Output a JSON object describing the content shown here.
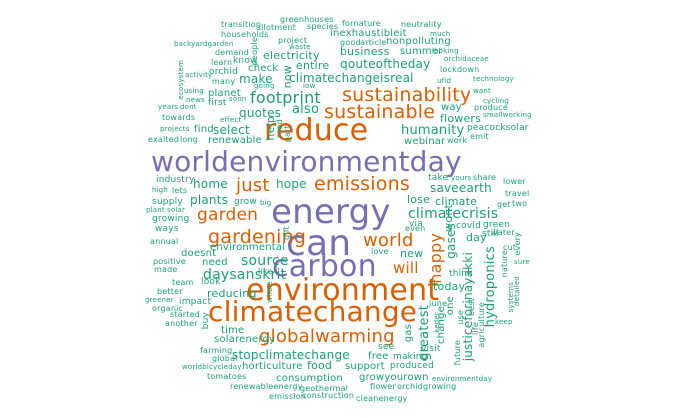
{
  "colors": {
    "purple": "#7570b3",
    "orange": "#d95f02",
    "green": "#1b9e77",
    "background": "#ffffff"
  },
  "words": {
    "worldenvironmentday": "worldenvironmentday",
    "energy": "energy",
    "environment": "environment",
    "climatechange": "climatechange",
    "reduce": "reduce",
    "can": "can",
    "carbon": "carbon",
    "sustainability": "sustainability",
    "sustainable": "sustainable",
    "emissions": "emissions",
    "gardening": "gardening",
    "globalwarming": "globalwarming",
    "world": "world",
    "garden": "garden",
    "just": "just",
    "will": "will",
    "happy": "happy",
    "climatecrisis": "climatecrisis",
    "footprint": "footprint",
    "hope": "hope",
    "source": "source",
    "daysanskrit": "daysanskrit",
    "stopclimatechange": "stopclimatechange",
    "greatest": "greatest",
    "justiceforinayakki": "justiceforinayakki",
    "hydroponics": "hydroponics",
    "humanity": "humanity",
    "saveearth": "saveearth",
    "climatechangeisreal": "climatechangeisreal",
    "qouteoftheday": "qouteoftheday",
    "business": "business",
    "inexhaustibleit": "inexhaustibleit",
    "electricity": "electricity",
    "entire": "entire",
    "planet": "planet",
    "also": "also",
    "make": "make",
    "quotes": "quotes",
    "select": "select",
    "home": "home",
    "plants": "plants",
    "reducing": "reducing",
    "solarenergy": "solarenergy",
    "horticulture": "horticulture",
    "consumption": "consumption",
    "growyourown": "growyourown",
    "food": "food",
    "today": "today",
    "climate": "climate",
    "lose": "lose",
    "new": "new",
    "gases": "gases",
    "wont": "wont",
    "day": "day",
    "change": "change",
    "gas": "gas",
    "one": "one",
    "environmental": "environmental",
    "doesnt": "doesnt",
    "need": "need",
    "time": "time",
    "flowers": "flowers",
    "webinar": "webinar",
    "help": "help",
    "now": "now",
    "check": "check",
    "first": "first",
    "renewable": "renewable",
    "find": "find",
    "industry": "industry",
    "supply": "supply",
    "growing": "growing",
    "ways": "ways",
    "annual": "annual",
    "made": "made",
    "positive": "positive",
    "team": "team",
    "better": "better",
    "impact": "impact",
    "organic": "organic",
    "started": "started",
    "another": "another",
    "farming": "farming",
    "global": "global",
    "tomatoes": "tomatoes",
    "worldbicycleday": "worldbicycleday",
    "renewableenergy": "renewableenergy",
    "geothermal": "geothermal",
    "emission": "emission",
    "construction": "construction",
    "cleanenergy": "cleanenergy",
    "flower": "flower",
    "orchidgrowing": "orchidgrowing",
    "environmentday": "environmentday",
    "produced": "produced",
    "support": "support",
    "free": "free",
    "making": "making",
    "see": "see",
    "visit": "visit",
    "future": "future",
    "agriculture": "agriculture",
    "best": "best",
    "even": "even",
    "love": "love",
    "think": "think",
    "take": "take",
    "yours": "yours",
    "share": "share",
    "lower": "lower",
    "travel": "travel",
    "two": "two",
    "get": "get",
    "still": "still",
    "water": "water",
    "covid": "covid",
    "green": "green",
    "via": "via",
    "every": "every",
    "cut": "cut",
    "nature": "nature",
    "sure": "sure",
    "systems": "systems",
    "detailed": "detailed",
    "keep": "keep",
    "peacocksolar": "peacocksolar",
    "emit": "emit",
    "work": "work",
    "smallworking": "smallworking",
    "cycling": "cycling",
    "want": "want",
    "technology": "technology",
    "produce": "produce",
    "way": "way",
    "lockdown": "lockdown",
    "orchidaceae": "orchidaceae",
    "looking": "looking",
    "much": "much",
    "neutrality": "neutrality",
    "ufid": "ufid",
    "summer": "summer",
    "nonpolluting": "nonpolluting",
    "article": "article",
    "good": "good",
    "fornature": "fornature",
    "species": "species",
    "greenhouses": "greenhouses",
    "transition": "transition",
    "allotment": "allotment",
    "households": "households",
    "project": "project",
    "waste": "waste",
    "people": "people",
    "backyardgarden": "backyardgarden",
    "demand": "demand",
    "learn": "learn",
    "know": "know",
    "ecosystem": "ecosystem",
    "activity": "activity",
    "orchid": "orchid",
    "many": "many",
    "going": "going",
    "low": "low",
    "using": "using",
    "news": "news",
    "years": "years",
    "dont": "dont",
    "towards": "towards",
    "projects": "projects",
    "exalted": "exalted",
    "long": "long",
    "effect": "effect",
    "read": "read",
    "part": "part",
    "grow": "grow",
    "big": "big",
    "high": "high",
    "lets": "lets",
    "plant": "plant",
    "solar": "solar",
    "greener": "greener",
    "gift": "gift",
    "look": "look",
    "like": "like",
    "whole": "whole",
    "buy": "buy",
    "june": "june",
    "keder": "keder",
    "use": "use",
    "life": "life",
    "soon": "soon"
  }
}
